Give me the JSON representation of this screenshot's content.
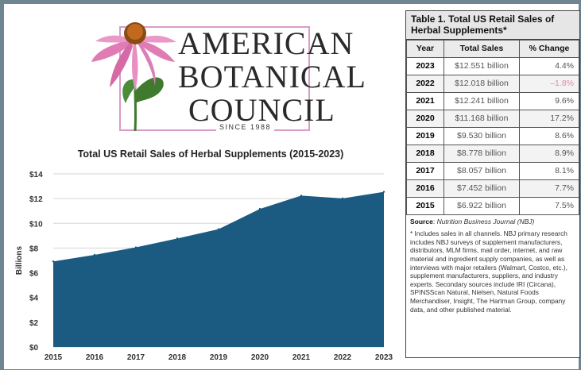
{
  "logo": {
    "line1": "AMERICAN",
    "line2": "BOTANICAL",
    "line3": "COUNCIL",
    "since": "SINCE 1988"
  },
  "chart_data": {
    "type": "area",
    "title": "Total US Retail Sales of Herbal Supplements (2015-2023)",
    "xlabel": "",
    "ylabel": "Billions",
    "x": [
      "2015",
      "2016",
      "2017",
      "2018",
      "2019",
      "2020",
      "2021",
      "2022",
      "2023"
    ],
    "values": [
      6.922,
      7.452,
      8.057,
      8.778,
      9.53,
      11.168,
      12.241,
      12.018,
      12.551
    ],
    "ylim": [
      0,
      14
    ],
    "yticks": [
      "$0",
      "$2",
      "$4",
      "$6",
      "$8",
      "$10",
      "$12",
      "$14"
    ],
    "yticks_values": [
      0,
      2,
      4,
      6,
      8,
      10,
      12,
      14
    ],
    "grid": true,
    "color": "#1b5b82"
  },
  "table": {
    "title": "Table 1. Total US Retail Sales of Herbal Supplements*",
    "headers": [
      "Year",
      "Total Sales",
      "% Change"
    ],
    "rows": [
      {
        "year": "2023",
        "sales": "$12.551 billion",
        "change": "4.4%"
      },
      {
        "year": "2022",
        "sales": "$12.018 billion",
        "change": "–1.8%"
      },
      {
        "year": "2021",
        "sales": "$12.241 billion",
        "change": "9.6%"
      },
      {
        "year": "2020",
        "sales": "$11.168 billion",
        "change": "17.2%"
      },
      {
        "year": "2019",
        "sales": "$9.530 billion",
        "change": "8.6%"
      },
      {
        "year": "2018",
        "sales": "$8.778 billion",
        "change": "8.9%"
      },
      {
        "year": "2017",
        "sales": "$8.057 billion",
        "change": "8.1%"
      },
      {
        "year": "2016",
        "sales": "$7.452 billion",
        "change": "7.7%"
      },
      {
        "year": "2015",
        "sales": "$6.922 billion",
        "change": "7.5%"
      }
    ],
    "source_label": "Source",
    "source_text": "Nutrition Business Journal (NBJ)",
    "footnote": "* Includes sales in all channels. NBJ primary research includes NBJ surveys of supplement manufacturers, distributors, MLM firms, mail order, internet, and raw material and ingredient supply companies, as well as interviews with major retailers (Walmart, Costco, etc.), supplement manufacturers, suppliers, and industry experts. Secondary sources include IRI (Circana), SPINSScan Natural, Nielsen, Natural Foods Merchandiser, Insight, The Hartman Group, company data, and other published material.",
    "negative_color": "#e58aa0"
  }
}
